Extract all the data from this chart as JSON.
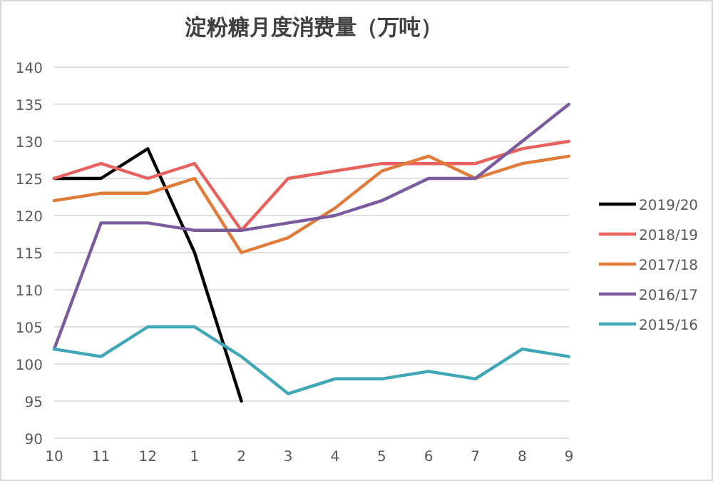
{
  "chart_data": {
    "type": "line",
    "title": "淀粉糖月度消费量（万吨）",
    "categories": [
      "10",
      "11",
      "12",
      "1",
      "2",
      "3",
      "4",
      "5",
      "6",
      "7",
      "8",
      "9"
    ],
    "ylim": [
      90,
      140
    ],
    "yticks": [
      90,
      95,
      100,
      105,
      110,
      115,
      120,
      125,
      130,
      135,
      140
    ],
    "grid": "y",
    "legend": "right",
    "series": [
      {
        "name": "2019/20",
        "color": "#000000",
        "values": [
          125,
          125,
          129,
          115,
          95,
          null,
          null,
          null,
          null,
          null,
          null,
          null
        ]
      },
      {
        "name": "2018/19",
        "color": "#e8615d",
        "values": [
          125,
          127,
          125,
          127,
          118,
          125,
          126,
          127,
          127,
          127,
          129,
          130
        ]
      },
      {
        "name": "2017/18",
        "color": "#e07b39",
        "values": [
          122,
          123,
          123,
          125,
          115,
          117,
          121,
          126,
          128,
          125,
          127,
          128
        ]
      },
      {
        "name": "2016/17",
        "color": "#7a5c9e",
        "values": [
          102,
          119,
          119,
          118,
          118,
          119,
          120,
          122,
          125,
          125,
          130,
          135
        ]
      },
      {
        "name": "2015/16",
        "color": "#3fa7b5",
        "values": [
          102,
          101,
          105,
          105,
          101,
          96,
          98,
          98,
          99,
          98,
          102,
          101
        ]
      }
    ]
  }
}
